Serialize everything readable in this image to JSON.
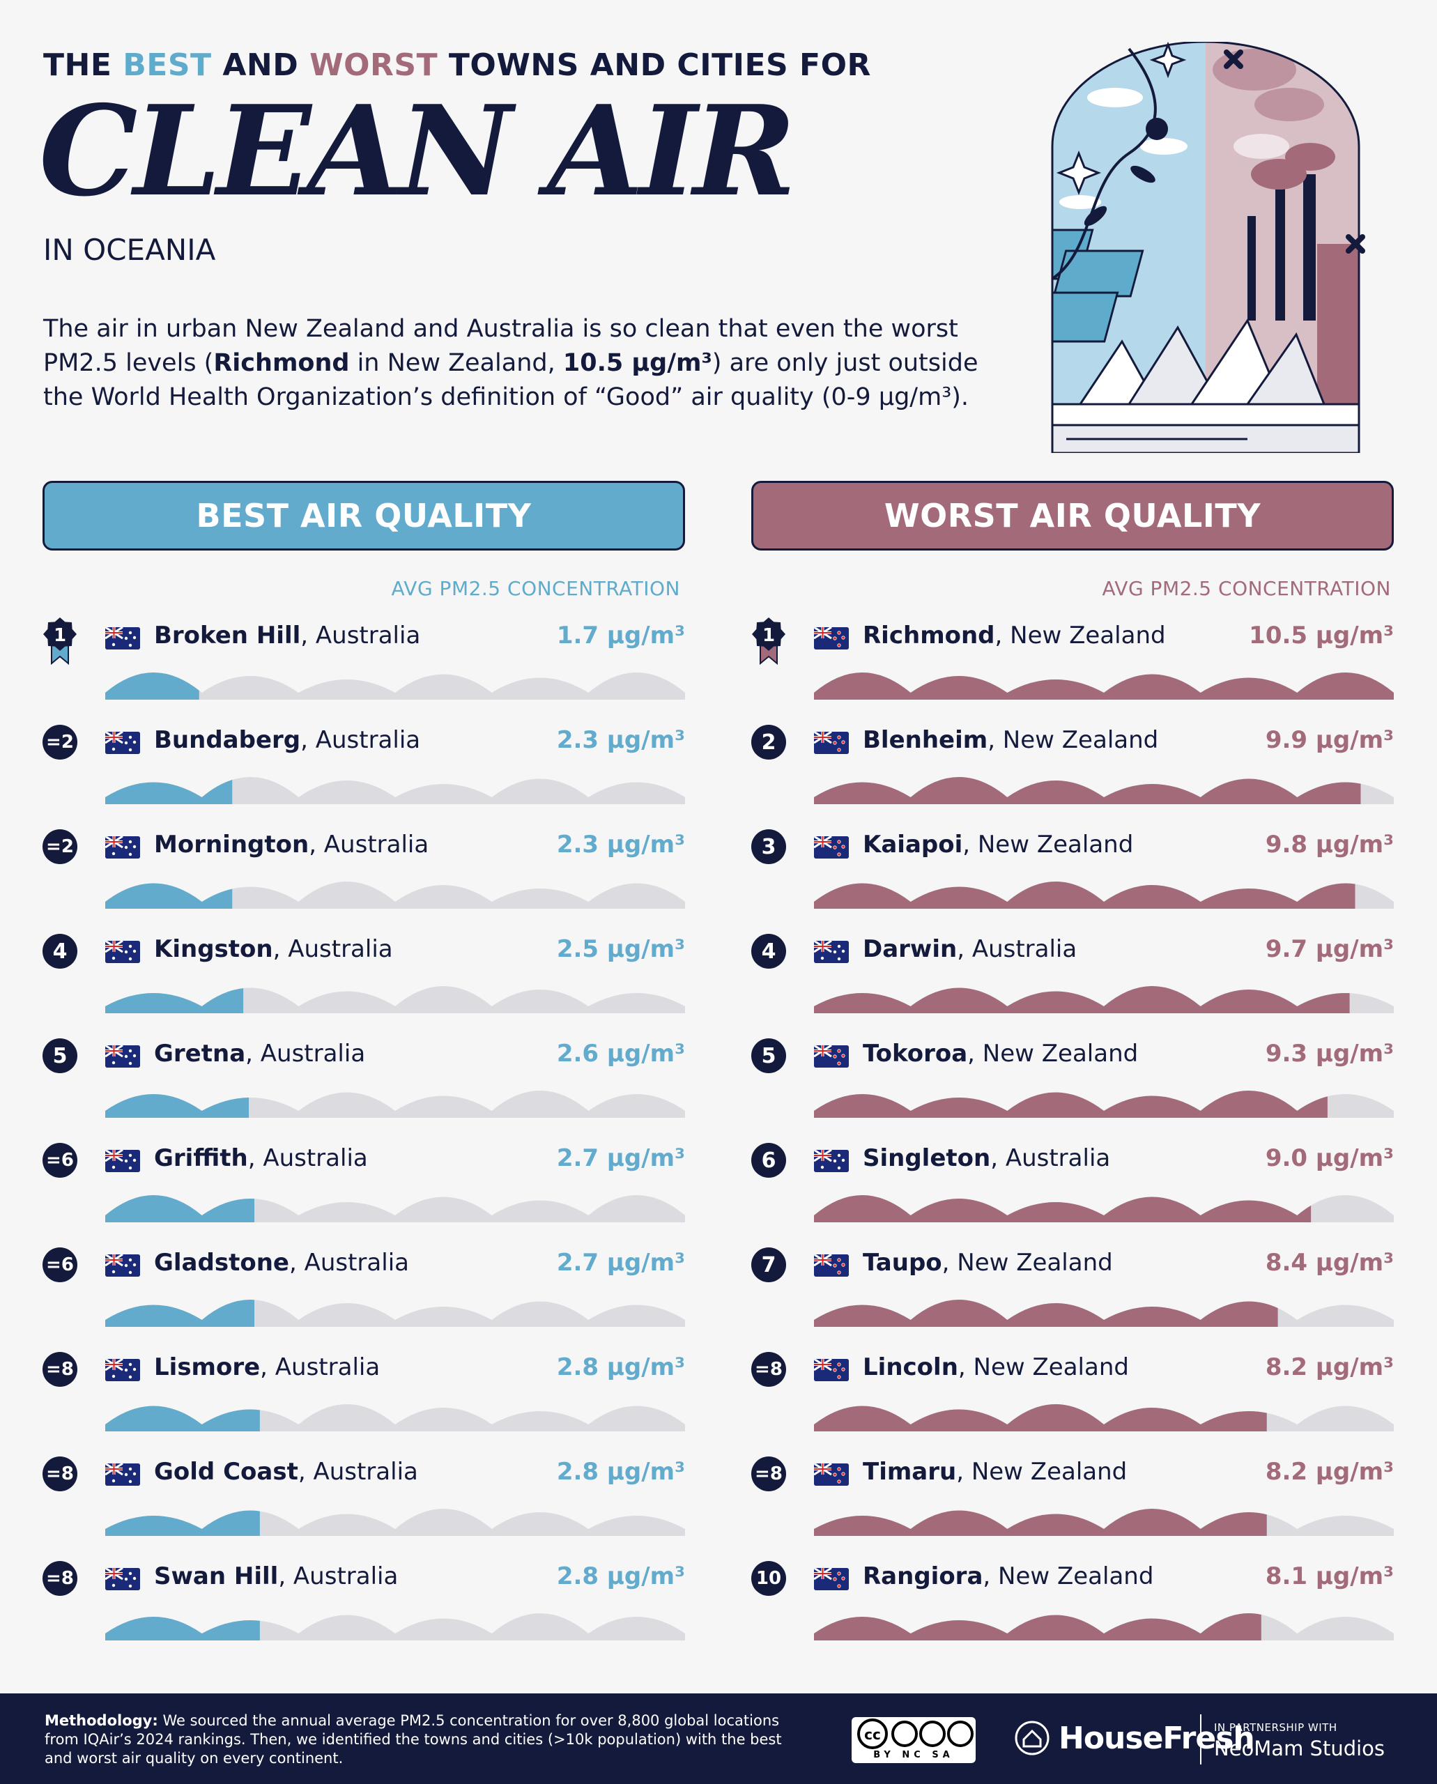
{
  "header": {
    "line_part1": "THE ",
    "best_word": "BEST",
    "line_part2": " AND ",
    "worst_word": "WORST",
    "line_part3": " TOWNS AND CITIES FOR",
    "title": "CLEAN AIR",
    "subtitle": "IN OCEANIA"
  },
  "intro": {
    "part1": "The air in urban New Zealand and Australia is so clean that even the worst PM2.5 levels (",
    "bold1": "Richmond",
    "part2": " in New Zealand, ",
    "bold2": "10.5 μg/m³",
    "part3": ") are only just outside the World Health Organization’s definition of “Good” air quality (0-9 μg/m³)."
  },
  "colors": {
    "best": "#62abcc",
    "worst": "#a36a7a",
    "track": "#dcdce0",
    "navy": "#141a3b"
  },
  "chart_data": [
    {
      "type": "bar",
      "title": "BEST AIR QUALITY",
      "ylabel": "AVG PM2.5 CONCENTRATION",
      "unit": "μg/m³",
      "xlim": [
        0,
        10.5
      ],
      "rows": [
        {
          "rank": "1",
          "city": "Broken Hill",
          "country": "Australia",
          "flag": "AU",
          "value": 1.7
        },
        {
          "rank": "=2",
          "city": "Bundaberg",
          "country": "Australia",
          "flag": "AU",
          "value": 2.3
        },
        {
          "rank": "=2",
          "city": "Mornington",
          "country": "Australia",
          "flag": "AU",
          "value": 2.3
        },
        {
          "rank": "4",
          "city": "Kingston",
          "country": "Australia",
          "flag": "AU",
          "value": 2.5
        },
        {
          "rank": "5",
          "city": "Gretna",
          "country": "Australia",
          "flag": "AU",
          "value": 2.6
        },
        {
          "rank": "=6",
          "city": "Griffith",
          "country": "Australia",
          "flag": "AU",
          "value": 2.7
        },
        {
          "rank": "=6",
          "city": "Gladstone",
          "country": "Australia",
          "flag": "AU",
          "value": 2.7
        },
        {
          "rank": "=8",
          "city": "Lismore",
          "country": "Australia",
          "flag": "AU",
          "value": 2.8
        },
        {
          "rank": "=8",
          "city": "Gold Coast",
          "country": "Australia",
          "flag": "AU",
          "value": 2.8
        },
        {
          "rank": "=8",
          "city": "Swan Hill",
          "country": "Australia",
          "flag": "AU",
          "value": 2.8
        }
      ]
    },
    {
      "type": "bar",
      "title": "WORST AIR QUALITY",
      "ylabel": "AVG PM2.5 CONCENTRATION",
      "unit": "μg/m³",
      "xlim": [
        0,
        10.5
      ],
      "rows": [
        {
          "rank": "1",
          "city": "Richmond",
          "country": "New Zealand",
          "flag": "NZ",
          "value": 10.5
        },
        {
          "rank": "2",
          "city": "Blenheim",
          "country": "New Zealand",
          "flag": "NZ",
          "value": 9.9
        },
        {
          "rank": "3",
          "city": "Kaiapoi",
          "country": "New Zealand",
          "flag": "NZ",
          "value": 9.8
        },
        {
          "rank": "4",
          "city": "Darwin",
          "country": "Australia",
          "flag": "AU",
          "value": 9.7
        },
        {
          "rank": "5",
          "city": "Tokoroa",
          "country": "New Zealand",
          "flag": "NZ",
          "value": 9.3
        },
        {
          "rank": "6",
          "city": "Singleton",
          "country": "Australia",
          "flag": "AU",
          "value": 9.0
        },
        {
          "rank": "7",
          "city": "Taupo",
          "country": "New Zealand",
          "flag": "NZ",
          "value": 8.4
        },
        {
          "rank": "=8",
          "city": "Lincoln",
          "country": "New Zealand",
          "flag": "NZ",
          "value": 8.2
        },
        {
          "rank": "=8",
          "city": "Timaru",
          "country": "New Zealand",
          "flag": "NZ",
          "value": 8.2
        },
        {
          "rank": "10",
          "city": "Rangiora",
          "country": "New Zealand",
          "flag": "NZ",
          "value": 8.1
        }
      ]
    }
  ],
  "footer": {
    "methodology_label": "Methodology:",
    "methodology_text": " We sourced the annual average PM2.5 concentration for over 8,800 global locations from IQAir’s 2024 rankings. Then, we identified the towns and cities (>10k population) with the best and worst air quality on every continent.",
    "license": "BY NC SA",
    "brand": "HouseFresh",
    "partner_small": "IN PARTNERSHIP WITH",
    "partner_name": "NeoMam Studios"
  }
}
